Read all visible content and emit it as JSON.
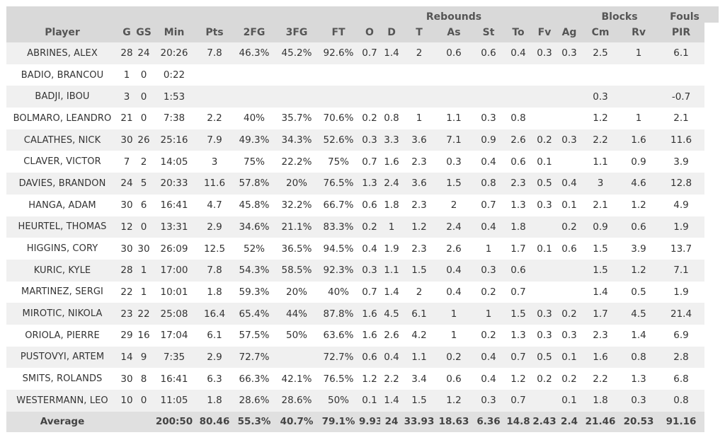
{
  "group_headers": [
    {
      "label": "",
      "span": 10
    },
    {
      "label": "Rebounds",
      "span": 3
    },
    {
      "label": "",
      "span": 3
    },
    {
      "label": "Blocks",
      "span": 2
    },
    {
      "label": "Fouls",
      "span": 2
    },
    {
      "label": "",
      "span": 1
    }
  ],
  "columns": [
    "Player",
    "G",
    "GS",
    "Min",
    "Pts",
    "2FG",
    "3FG",
    "FT",
    "O",
    "D",
    "T",
    "As",
    "St",
    "To",
    "Fv",
    "Ag",
    "Cm",
    "Rv",
    "PIR"
  ],
  "rows": [
    [
      "ABRINES, ALEX",
      "28",
      "24",
      "20:26",
      "7.8",
      "46.3%",
      "45.2%",
      "92.6%",
      "0.7",
      "1.4",
      "2",
      "0.6",
      "0.6",
      "0.4",
      "0.3",
      "0.3",
      "2.5",
      "1",
      "6.1"
    ],
    [
      "BADIO, BRANCOU",
      "1",
      "0",
      "0:22",
      "",
      "",
      "",
      "",
      "",
      "",
      "",
      "",
      "",
      "",
      "",
      "",
      "",
      "",
      ""
    ],
    [
      "BADJI, IBOU",
      "3",
      "0",
      "1:53",
      "",
      "",
      "",
      "",
      "",
      "",
      "",
      "",
      "",
      "",
      "",
      "",
      "0.3",
      "",
      "-0.7"
    ],
    [
      "BOLMARO, LEANDRO",
      "21",
      "0",
      "7:38",
      "2.2",
      "40%",
      "35.7%",
      "70.6%",
      "0.2",
      "0.8",
      "1",
      "1.1",
      "0.3",
      "0.8",
      "",
      "",
      "1.2",
      "1",
      "2.1"
    ],
    [
      "CALATHES, NICK",
      "30",
      "26",
      "25:16",
      "7.9",
      "49.3%",
      "34.3%",
      "52.6%",
      "0.3",
      "3.3",
      "3.6",
      "7.1",
      "0.9",
      "2.6",
      "0.2",
      "0.3",
      "2.2",
      "1.6",
      "11.6"
    ],
    [
      "CLAVER, VICTOR",
      "7",
      "2",
      "14:05",
      "3",
      "75%",
      "22.2%",
      "75%",
      "0.7",
      "1.6",
      "2.3",
      "0.3",
      "0.4",
      "0.6",
      "0.1",
      "",
      "1.1",
      "0.9",
      "3.9"
    ],
    [
      "DAVIES, BRANDON",
      "24",
      "5",
      "20:33",
      "11.6",
      "57.8%",
      "20%",
      "76.5%",
      "1.3",
      "2.4",
      "3.6",
      "1.5",
      "0.8",
      "2.3",
      "0.5",
      "0.4",
      "3",
      "4.6",
      "12.8"
    ],
    [
      "HANGA, ADAM",
      "30",
      "6",
      "16:41",
      "4.7",
      "45.8%",
      "32.2%",
      "66.7%",
      "0.6",
      "1.8",
      "2.3",
      "2",
      "0.7",
      "1.3",
      "0.3",
      "0.1",
      "2.1",
      "1.2",
      "4.9"
    ],
    [
      "HEURTEL, THOMAS",
      "12",
      "0",
      "13:31",
      "2.9",
      "34.6%",
      "21.1%",
      "83.3%",
      "0.2",
      "1",
      "1.2",
      "2.4",
      "0.4",
      "1.8",
      "",
      "0.2",
      "0.9",
      "0.6",
      "1.9"
    ],
    [
      "HIGGINS, CORY",
      "30",
      "30",
      "26:09",
      "12.5",
      "52%",
      "36.5%",
      "94.5%",
      "0.4",
      "1.9",
      "2.3",
      "2.6",
      "1",
      "1.7",
      "0.1",
      "0.6",
      "1.5",
      "3.9",
      "13.7"
    ],
    [
      "KURIC, KYLE",
      "28",
      "1",
      "17:00",
      "7.8",
      "54.3%",
      "58.5%",
      "92.3%",
      "0.3",
      "1.1",
      "1.5",
      "0.4",
      "0.3",
      "0.6",
      "",
      "",
      "1.5",
      "1.2",
      "7.1"
    ],
    [
      "MARTINEZ, SERGI",
      "22",
      "1",
      "10:01",
      "1.8",
      "59.3%",
      "20%",
      "40%",
      "0.7",
      "1.4",
      "2",
      "0.4",
      "0.2",
      "0.7",
      "",
      "",
      "1.4",
      "0.5",
      "1.9"
    ],
    [
      "MIROTIC, NIKOLA",
      "23",
      "22",
      "25:08",
      "16.4",
      "65.4%",
      "44%",
      "87.8%",
      "1.6",
      "4.5",
      "6.1",
      "1",
      "1",
      "1.5",
      "0.3",
      "0.2",
      "1.7",
      "4.5",
      "21.4"
    ],
    [
      "ORIOLA, PIERRE",
      "29",
      "16",
      "17:04",
      "6.1",
      "57.5%",
      "50%",
      "63.6%",
      "1.6",
      "2.6",
      "4.2",
      "1",
      "0.2",
      "1.3",
      "0.3",
      "0.3",
      "2.3",
      "1.4",
      "6.9"
    ],
    [
      "PUSTOVYI, ARTEM",
      "14",
      "9",
      "7:35",
      "2.9",
      "72.7%",
      "",
      "72.7%",
      "0.6",
      "0.4",
      "1.1",
      "0.2",
      "0.4",
      "0.7",
      "0.5",
      "0.1",
      "1.6",
      "0.8",
      "2.8"
    ],
    [
      "SMITS, ROLANDS",
      "30",
      "8",
      "16:41",
      "6.3",
      "66.3%",
      "42.1%",
      "76.5%",
      "1.2",
      "2.2",
      "3.4",
      "0.6",
      "0.4",
      "1.2",
      "0.2",
      "0.2",
      "2.2",
      "1.3",
      "6.8"
    ],
    [
      "WESTERMANN, LEO",
      "10",
      "0",
      "11:05",
      "1.8",
      "28.6%",
      "28.6%",
      "50%",
      "0.1",
      "1.4",
      "1.5",
      "1.2",
      "0.3",
      "0.7",
      "",
      "0.1",
      "1.8",
      "0.3",
      "0.8"
    ]
  ],
  "footer": [
    "Average",
    "",
    "",
    "200:50",
    "80.46",
    "55.3%",
    "40.7%",
    "79.1%",
    "9.93",
    "24",
    "33.93",
    "18.63",
    "6.36",
    "14.8",
    "2.43",
    "2.4",
    "21.46",
    "20.53",
    "91.16"
  ]
}
